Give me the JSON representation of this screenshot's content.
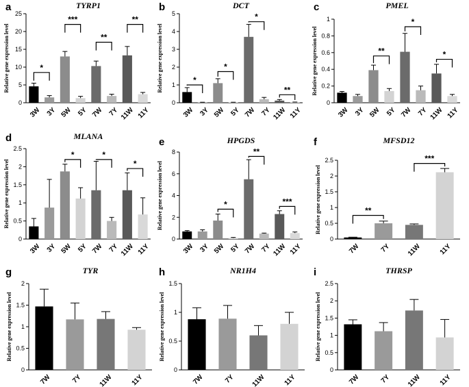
{
  "chart_data": [
    {
      "panel": "a",
      "title": "TYRP1",
      "type": "bar",
      "ylabel": "Relative gene expression level",
      "ylim": [
        0,
        25
      ],
      "yticks": [
        0,
        5,
        10,
        15,
        20,
        25
      ],
      "categories": [
        "3W",
        "3Y",
        "5W",
        "5Y",
        "7W",
        "7Y",
        "11W",
        "11Y"
      ],
      "values": [
        4.6,
        1.5,
        13.0,
        1.3,
        10.3,
        1.9,
        13.3,
        2.4
      ],
      "errors": [
        0.9,
        0.5,
        1.4,
        0.5,
        1.4,
        0.5,
        2.5,
        0.5
      ],
      "colors": [
        "#000000",
        "#9a9a9a",
        "#8c8c8c",
        "#d3d3d3",
        "#6b6b6b",
        "#bababa",
        "#595959",
        "#d9d9d9"
      ],
      "significance": [
        {
          "from": 0,
          "to": 1,
          "label": "*",
          "y": 8.5
        },
        {
          "from": 2,
          "to": 3,
          "label": "***",
          "y": 22.0
        },
        {
          "from": 4,
          "to": 5,
          "label": "**",
          "y": 17.0
        },
        {
          "from": 6,
          "to": 7,
          "label": "**",
          "y": 22.0
        }
      ]
    },
    {
      "panel": "b",
      "title": "DCT",
      "type": "bar",
      "ylabel": "Relative gene expression level",
      "ylim": [
        0,
        5
      ],
      "yticks": [
        0,
        1,
        2,
        3,
        4,
        5
      ],
      "categories": [
        "3W",
        "3Y",
        "5W",
        "5Y",
        "7W",
        "7Y",
        "11W",
        "11Y"
      ],
      "values": [
        0.6,
        0.02,
        1.1,
        0.02,
        3.7,
        0.2,
        0.12,
        0.03
      ],
      "errors": [
        0.25,
        0.01,
        0.25,
        0.01,
        0.7,
        0.1,
        0.06,
        0.01
      ],
      "colors": [
        "#000000",
        "#9a9a9a",
        "#8c8c8c",
        "#d3d3d3",
        "#6b6b6b",
        "#bababa",
        "#595959",
        "#d9d9d9"
      ],
      "significance": [
        {
          "from": 0,
          "to": 1,
          "label": "*",
          "y": 1.0
        },
        {
          "from": 2,
          "to": 3,
          "label": "*",
          "y": 1.75
        },
        {
          "from": 4,
          "to": 5,
          "label": "*",
          "y": 4.55
        },
        {
          "from": 6,
          "to": 7,
          "label": "**",
          "y": 0.45
        }
      ]
    },
    {
      "panel": "c",
      "title": "PMEL",
      "type": "bar",
      "ylabel": "Relative gene expression level",
      "ylim": [
        0,
        1.0
      ],
      "yticks": [
        0.0,
        0.2,
        0.4,
        0.6,
        0.8,
        1.0
      ],
      "categories": [
        "3W",
        "3Y",
        "5W",
        "5Y",
        "7W",
        "7Y",
        "11W",
        "11Y"
      ],
      "values": [
        0.12,
        0.08,
        0.39,
        0.14,
        0.61,
        0.15,
        0.35,
        0.08
      ],
      "errors": [
        0.015,
        0.02,
        0.06,
        0.03,
        0.22,
        0.05,
        0.11,
        0.02
      ],
      "colors": [
        "#000000",
        "#9a9a9a",
        "#8c8c8c",
        "#d3d3d3",
        "#6b6b6b",
        "#bababa",
        "#595959",
        "#d9d9d9"
      ],
      "significance": [
        {
          "from": 2,
          "to": 3,
          "label": "**",
          "y": 0.56
        },
        {
          "from": 4,
          "to": 5,
          "label": "*",
          "y": 0.91
        },
        {
          "from": 6,
          "to": 7,
          "label": "*",
          "y": 0.52
        }
      ]
    },
    {
      "panel": "d",
      "title": "MLANA",
      "type": "bar",
      "ylabel": "Relative gene expression level",
      "ylim": [
        0,
        2.5
      ],
      "yticks": [
        0,
        0.5,
        1,
        1.5,
        2,
        2.5
      ],
      "categories": [
        "3W",
        "3Y",
        "5W",
        "5Y",
        "7W",
        "7Y",
        "11W",
        "11Y"
      ],
      "values": [
        0.35,
        0.87,
        1.87,
        1.12,
        1.35,
        0.5,
        1.35,
        0.68
      ],
      "errors": [
        0.22,
        0.78,
        0.2,
        0.3,
        0.8,
        0.1,
        0.48,
        0.46
      ],
      "colors": [
        "#000000",
        "#9a9a9a",
        "#8c8c8c",
        "#d3d3d3",
        "#6b6b6b",
        "#bababa",
        "#595959",
        "#d9d9d9"
      ],
      "significance": [
        {
          "from": 2,
          "to": 3,
          "label": "*",
          "y": 2.2
        },
        {
          "from": 4,
          "to": 5,
          "label": "*",
          "y": 2.2
        },
        {
          "from": 6,
          "to": 7,
          "label": "*",
          "y": 1.95
        }
      ]
    },
    {
      "panel": "e",
      "title": "HPGDS",
      "type": "bar",
      "ylabel": "Relative gene expression level",
      "ylim": [
        0,
        8
      ],
      "yticks": [
        0,
        2,
        4,
        6,
        8
      ],
      "categories": [
        "3W",
        "3Y",
        "5W",
        "5Y",
        "7W",
        "7Y",
        "11W",
        "11Y"
      ],
      "values": [
        0.7,
        0.7,
        1.7,
        0.1,
        5.5,
        0.5,
        2.3,
        0.55
      ],
      "errors": [
        0.08,
        0.15,
        0.6,
        0.05,
        1.8,
        0.05,
        0.3,
        0.1
      ],
      "colors": [
        "#000000",
        "#9a9a9a",
        "#8c8c8c",
        "#d3d3d3",
        "#6b6b6b",
        "#bababa",
        "#595959",
        "#d9d9d9"
      ],
      "significance": [
        {
          "from": 2,
          "to": 3,
          "label": "*",
          "y": 2.75
        },
        {
          "from": 4,
          "to": 5,
          "label": "**",
          "y": 7.6
        },
        {
          "from": 6,
          "to": 7,
          "label": "***",
          "y": 3.0
        }
      ]
    },
    {
      "panel": "f",
      "title": "MFSD12",
      "type": "bar",
      "ylabel": "Relative gene expression level",
      "ylim": [
        0,
        2.5
      ],
      "yticks": [
        0.0,
        0.5,
        1.0,
        1.5,
        2.0,
        2.5
      ],
      "categories": [
        "7W",
        "7Y",
        "11W",
        "11Y"
      ],
      "values": [
        0.05,
        0.5,
        0.45,
        2.12
      ],
      "errors": [
        0.01,
        0.07,
        0.03,
        0.12
      ],
      "colors": [
        "#000000",
        "#9a9a9a",
        "#777777",
        "#d3d3d3"
      ],
      "significance": [
        {
          "from": 0,
          "to": 1,
          "label": "**",
          "y": 0.75
        },
        {
          "from": 2,
          "to": 3,
          "label": "***",
          "y": 2.4
        }
      ]
    },
    {
      "panel": "g",
      "title": "TYR",
      "type": "bar",
      "ylabel": "Relative gene expression level",
      "ylim": [
        0,
        2.0
      ],
      "yticks": [
        0.0,
        0.5,
        1.0,
        1.5,
        2.0
      ],
      "categories": [
        "7W",
        "7Y",
        "11W",
        "11Y"
      ],
      "values": [
        1.47,
        1.17,
        1.18,
        0.93
      ],
      "errors": [
        0.4,
        0.38,
        0.17,
        0.05
      ],
      "colors": [
        "#000000",
        "#9a9a9a",
        "#777777",
        "#d3d3d3"
      ],
      "significance": []
    },
    {
      "panel": "h",
      "title": "NR1H4",
      "type": "bar",
      "ylabel": "Relative gene expression level",
      "ylim": [
        0,
        1.5
      ],
      "yticks": [
        0.0,
        0.5,
        1.0,
        1.5
      ],
      "categories": [
        "7W",
        "7Y",
        "11W",
        "11Y"
      ],
      "values": [
        0.88,
        0.89,
        0.6,
        0.8
      ],
      "errors": [
        0.2,
        0.23,
        0.17,
        0.2
      ],
      "colors": [
        "#000000",
        "#9a9a9a",
        "#777777",
        "#d3d3d3"
      ],
      "significance": []
    },
    {
      "panel": "i",
      "title": "THRSP",
      "type": "bar",
      "ylabel": "Relative gene expression level",
      "ylim": [
        0,
        2.5
      ],
      "yticks": [
        0.0,
        0.5,
        1.0,
        1.5,
        2.0,
        2.5
      ],
      "categories": [
        "7W",
        "7Y",
        "11W",
        "11Y"
      ],
      "values": [
        1.32,
        1.12,
        1.72,
        0.94
      ],
      "errors": [
        0.13,
        0.25,
        0.32,
        0.52
      ],
      "colors": [
        "#000000",
        "#9a9a9a",
        "#777777",
        "#d3d3d3"
      ],
      "significance": []
    }
  ]
}
